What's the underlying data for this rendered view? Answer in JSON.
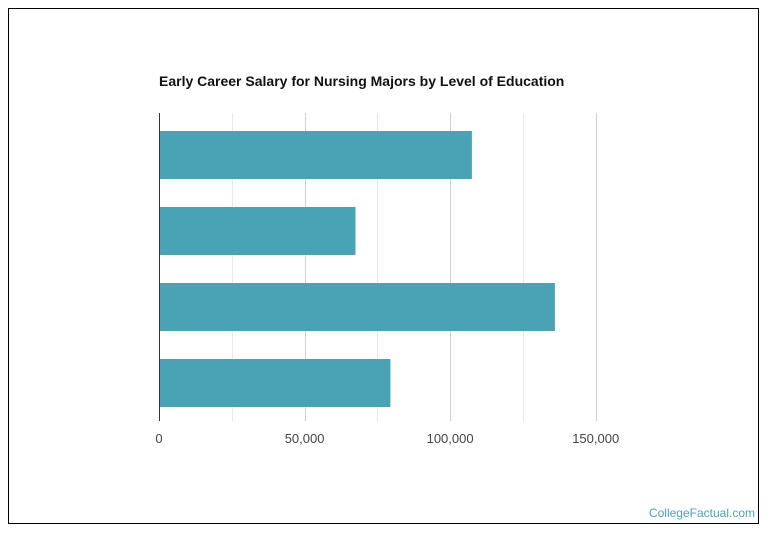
{
  "chart_data": {
    "type": "bar",
    "orientation": "horizontal",
    "title": "Early Career Salary for Nursing Majors by Level of Education",
    "categories": [
      "",
      "",
      "",
      ""
    ],
    "values": [
      107500,
      67500,
      136000,
      79500
    ],
    "xlim": [
      0,
      180000
    ],
    "xticks": [
      0,
      50000,
      100000,
      150000
    ],
    "xtick_labels": [
      "0",
      "50,000",
      "100,000",
      "150,000"
    ],
    "xlabel": "",
    "ylabel": "",
    "grid": true,
    "bar_color": "#4aa3b5"
  },
  "footer": {
    "credit": "CollegeFactual.com"
  }
}
